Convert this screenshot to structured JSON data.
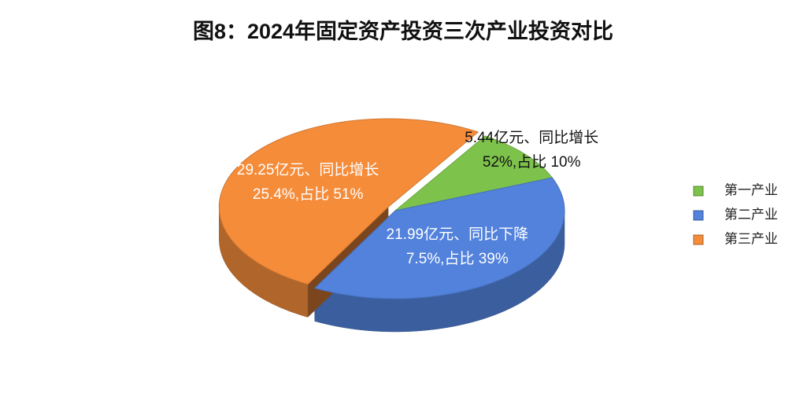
{
  "chart_data": {
    "type": "pie",
    "title": "图8：2024年固定资产投资三次产业投资对比",
    "categories": [
      "第一产业",
      "第二产业",
      "第三产业"
    ],
    "values": [
      10,
      39,
      51
    ],
    "value_labels": [
      "5.44亿元、同比增长52%,占比 10%",
      "21.99亿元、同比下降7.5%,占比 39%",
      "29.25亿元、同比增长25.4%,占比 51%"
    ],
    "colors": [
      "#7dc24b",
      "#5282dc",
      "#f58c3a"
    ],
    "legend": "right"
  }
}
